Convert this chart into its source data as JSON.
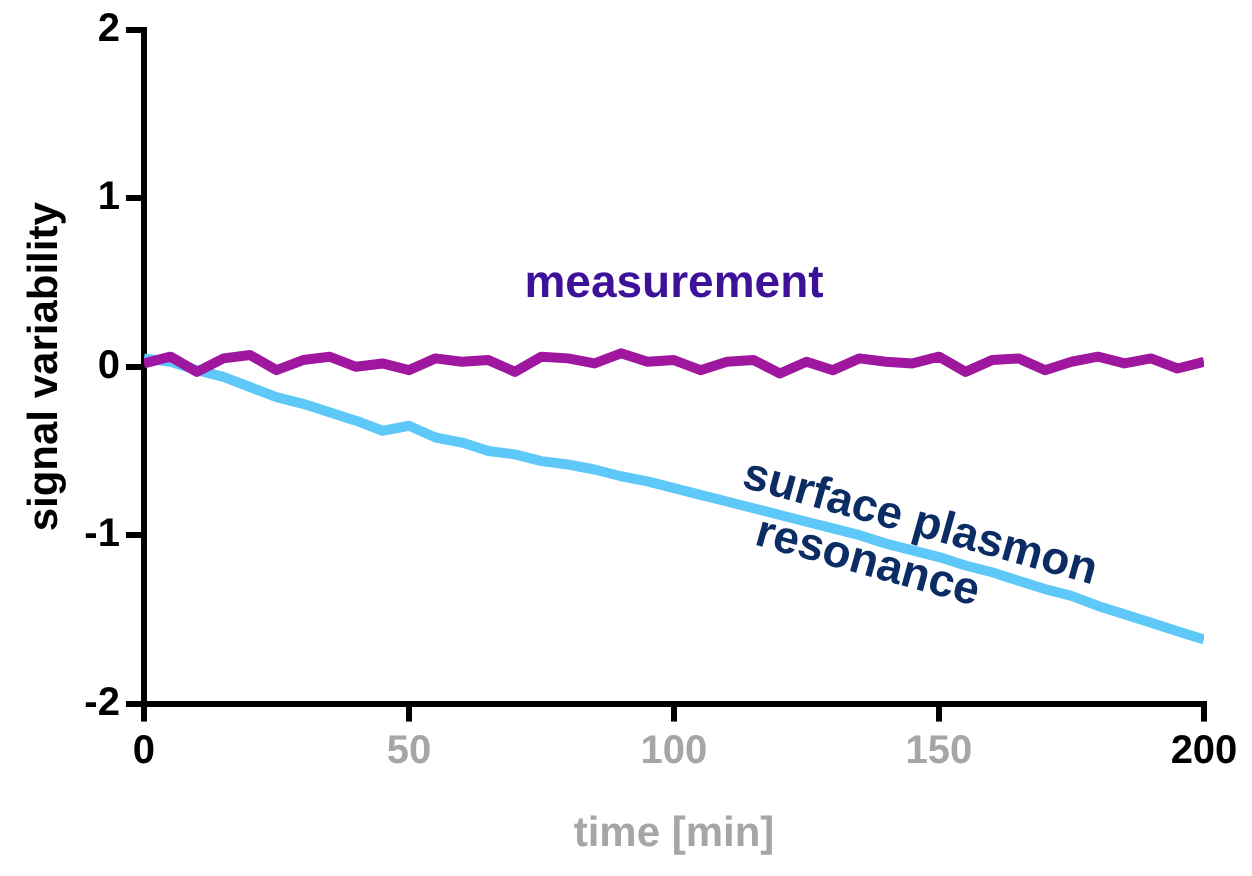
{
  "chart_data": {
    "type": "line",
    "xlabel": "time [min]",
    "ylabel": "signal variability",
    "x": [
      0,
      5,
      10,
      15,
      20,
      25,
      30,
      35,
      40,
      45,
      50,
      55,
      60,
      65,
      70,
      75,
      80,
      85,
      90,
      95,
      100,
      105,
      110,
      115,
      120,
      125,
      130,
      135,
      140,
      145,
      150,
      155,
      160,
      165,
      170,
      175,
      180,
      185,
      190,
      195,
      200
    ],
    "series": [
      {
        "name": "measurement",
        "color": "#a0179f",
        "values": [
          0.02,
          0.06,
          -0.03,
          0.05,
          0.07,
          -0.02,
          0.04,
          0.06,
          0,
          0.02,
          -0.02,
          0.05,
          0.03,
          0.04,
          -0.03,
          0.06,
          0.05,
          0.02,
          0.08,
          0.03,
          0.04,
          -0.02,
          0.03,
          0.04,
          -0.04,
          0.03,
          -0.02,
          0.05,
          0.03,
          0.02,
          0.06,
          -0.03,
          0.04,
          0.05,
          -0.02,
          0.03,
          0.06,
          0.02,
          0.05,
          -0.01,
          0.03
        ]
      },
      {
        "name": "surface plasmon resonance",
        "color": "#5ec8f8",
        "values": [
          0.05,
          0.03,
          -0.02,
          -0.06,
          -0.12,
          -0.18,
          -0.22,
          -0.27,
          -0.32,
          -0.38,
          -0.35,
          -0.42,
          -0.45,
          -0.5,
          -0.52,
          -0.56,
          -0.58,
          -0.61,
          -0.65,
          -0.68,
          -0.72,
          -0.76,
          -0.8,
          -0.84,
          -0.88,
          -0.92,
          -0.96,
          -1,
          -1.05,
          -1.09,
          -1.13,
          -1.18,
          -1.22,
          -1.27,
          -1.32,
          -1.36,
          -1.42,
          -1.47,
          -1.52,
          -1.57,
          -1.62
        ]
      }
    ],
    "xlim": [
      0,
      200
    ],
    "xticks": [
      0,
      50,
      100,
      150,
      200
    ],
    "ylim": [
      -2,
      2
    ],
    "yticks": [
      -2,
      -1,
      0,
      1,
      2
    ],
    "grid": false,
    "legend": false,
    "marker": "none",
    "line_style": "solid"
  }
}
